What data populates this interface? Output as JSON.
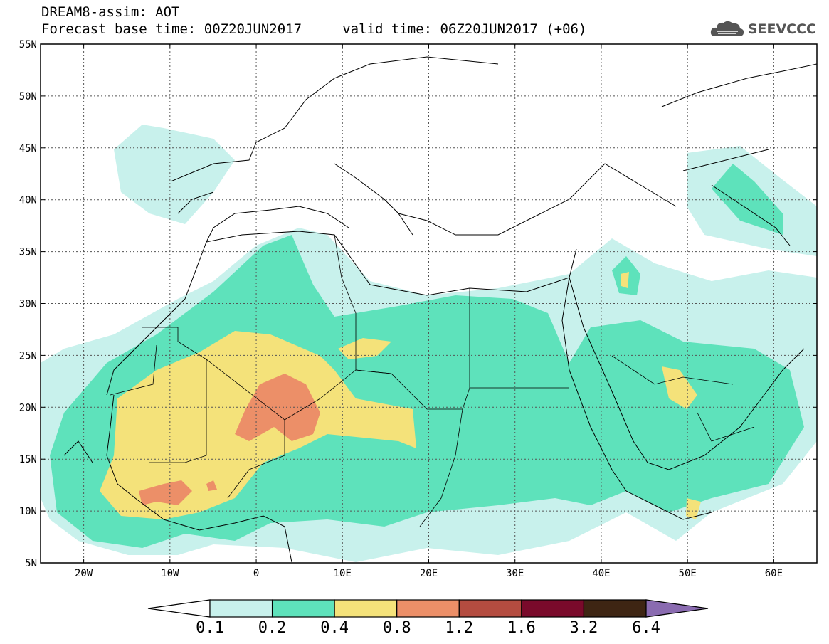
{
  "header": {
    "title": "DREAM8-assim: AOT",
    "subtitle": "Forecast base time: 00Z20JUN2017     valid time: 06Z20JUN2017 (+06)"
  },
  "logo": {
    "text": "SEEVCCC",
    "icon": "cloud-icon"
  },
  "map": {
    "lon_range": [
      -25,
      65
    ],
    "lat_range": [
      5,
      55
    ],
    "lat_ticks": [
      "55N",
      "50N",
      "45N",
      "40N",
      "35N",
      "30N",
      "25N",
      "20N",
      "15N",
      "10N",
      "5N"
    ],
    "lon_ticks": [
      "20W",
      "10W",
      "0",
      "10E",
      "20E",
      "30E",
      "40E",
      "50E",
      "60E"
    ],
    "grid": true
  },
  "colorbar": {
    "labels": [
      "0.1",
      "0.2",
      "0.4",
      "0.8",
      "1.2",
      "1.6",
      "3.2",
      "6.4"
    ],
    "colors": [
      "#c8f1ec",
      "#5ee2bb",
      "#f4e27a",
      "#ec8f68",
      "#b44c40",
      "#7a0a2b",
      "#3e2513",
      "#8a6bb0"
    ],
    "under_color": "#ffffff"
  }
}
